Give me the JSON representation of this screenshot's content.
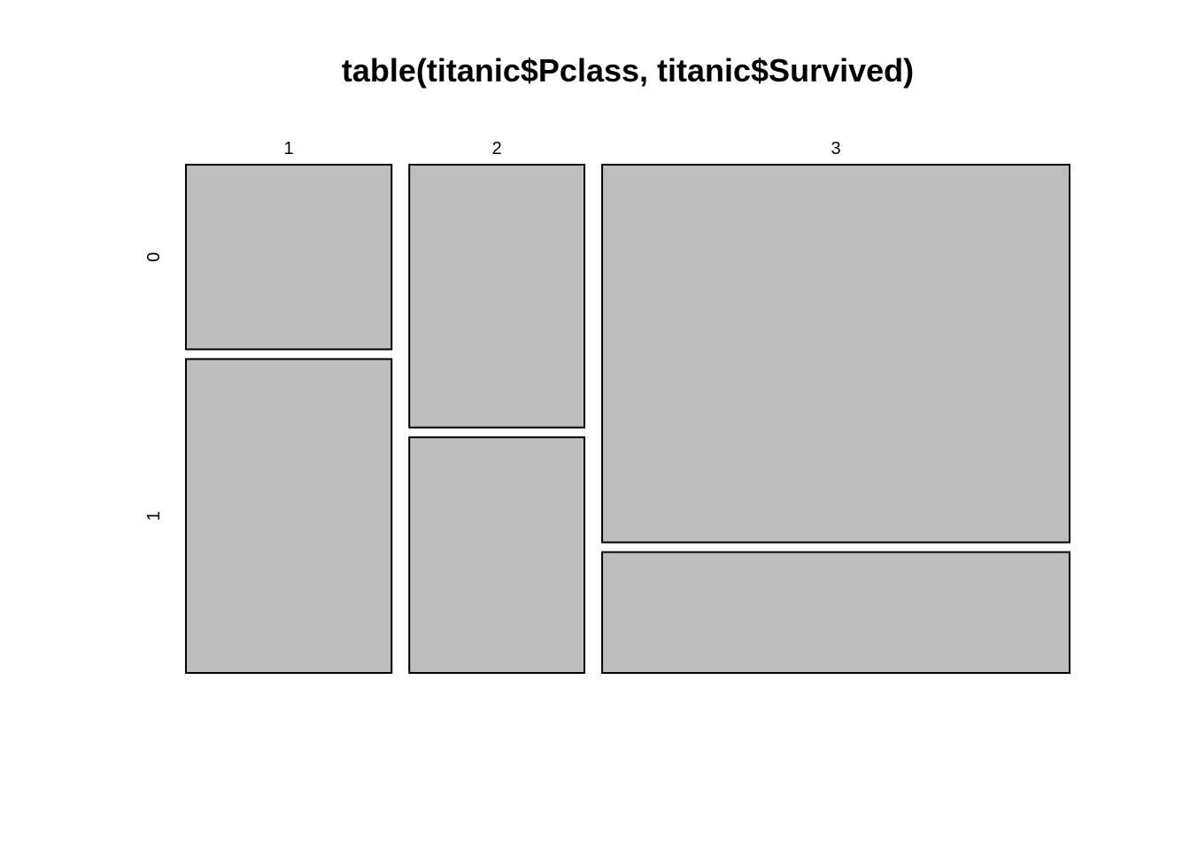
{
  "chart_data": {
    "type": "mosaic",
    "title": "table(titanic$Pclass, titanic$Survived)",
    "xlabel": "",
    "ylabel": "",
    "row_variable_levels": [
      "1",
      "2",
      "3"
    ],
    "col_variable_levels": [
      "0",
      "1"
    ],
    "counts": [
      {
        "pclass": "1",
        "values": [
          80,
          136
        ]
      },
      {
        "pclass": "2",
        "values": [
          97,
          87
        ]
      },
      {
        "pclass": "3",
        "values": [
          372,
          119
        ]
      }
    ],
    "fill_color": "#bebebe",
    "border_color": "#000000",
    "grid": false,
    "legend": "none"
  }
}
